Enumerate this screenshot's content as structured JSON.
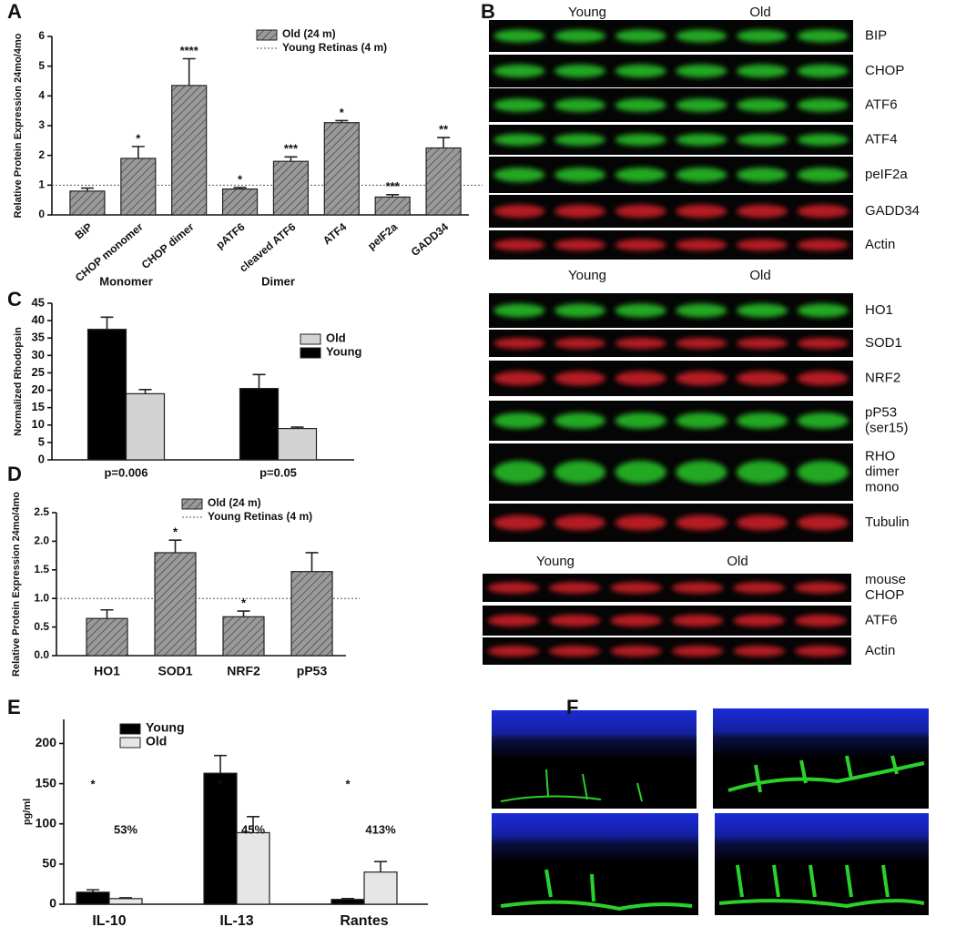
{
  "panel_labels": [
    "A",
    "B",
    "C",
    "D",
    "E",
    "F"
  ],
  "chart_data": [
    {
      "type": "bar",
      "ylabel": "Relative Protein Expression 24mo/4mo",
      "categories": [
        "BiP",
        "CHOP monomer",
        "CHOP dimer",
        "pATF6",
        "cleaved ATF6",
        "ATF4",
        "peIF2a",
        "GADD34"
      ],
      "series": [
        {
          "name": "Old (24 m)",
          "color": "#9a9a9a",
          "hatch": true,
          "values": [
            0.8,
            1.9,
            4.35,
            0.87,
            1.8,
            3.1,
            0.6,
            2.25
          ],
          "errors": [
            0.1,
            0.4,
            0.9,
            0.05,
            0.15,
            0.07,
            0.08,
            0.35
          ]
        }
      ],
      "stars": [
        null,
        "*",
        "****",
        "*",
        "***",
        "*",
        "***",
        "**"
      ],
      "reference_line": {
        "label": "Young Retinas (4 m)",
        "value": 1
      },
      "ylim": [
        0,
        6
      ],
      "yticks": [
        0,
        1,
        2,
        3,
        4,
        5,
        6
      ]
    },
    {
      "type": "bar",
      "ylabel": "Normalized Rhodopsin",
      "categories": [
        "Monomer",
        "Dimer"
      ],
      "p_values": [
        "p=0.006",
        "p=0.05"
      ],
      "series": [
        {
          "name": "Young",
          "color": "#000000",
          "values": [
            37.5,
            20.5
          ],
          "errors": [
            3.5,
            4
          ]
        },
        {
          "name": "Old",
          "color": "#d3d3d3",
          "values": [
            19,
            9
          ],
          "errors": [
            1.2,
            0.4
          ]
        }
      ],
      "ylim": [
        0,
        45
      ],
      "yticks": [
        0,
        5,
        10,
        15,
        20,
        25,
        30,
        35,
        40,
        45
      ]
    },
    {
      "type": "bar",
      "ylabel": "Relative Protein Expression 24mo/4mo",
      "categories": [
        "HO1",
        "SOD1",
        "NRF2",
        "pP53"
      ],
      "series": [
        {
          "name": "Old (24 m)",
          "color": "#9a9a9a",
          "hatch": true,
          "values": [
            0.65,
            1.8,
            0.68,
            1.47
          ],
          "errors": [
            0.15,
            0.22,
            0.1,
            0.33
          ]
        }
      ],
      "stars": [
        null,
        "*",
        "*",
        null
      ],
      "reference_line": {
        "label": "Young Retinas (4 m)",
        "value": 1
      },
      "ylim": [
        0,
        2.5
      ],
      "yticks": [
        {
          "value": 0,
          "label": "0.0"
        },
        {
          "value": 0.5,
          "label": "0.5"
        },
        {
          "value": 1,
          "label": "1.0"
        },
        {
          "value": 1.5,
          "label": "1.5"
        },
        {
          "value": 2,
          "label": "2.0"
        },
        {
          "value": 2.5,
          "label": "2.5"
        }
      ]
    },
    {
      "type": "bar",
      "ylabel": "pg/ml",
      "categories": [
        "IL-10",
        "IL-13",
        "Rantes"
      ],
      "series": [
        {
          "name": "Young",
          "color": "#000000",
          "values": [
            15,
            163,
            6
          ],
          "errors": [
            3,
            22,
            1
          ]
        },
        {
          "name": "Old",
          "color": "#e6e6e6",
          "values": [
            7,
            89,
            40
          ],
          "errors": [
            1,
            20,
            13
          ]
        }
      ],
      "stars": [
        "*",
        "*",
        "*"
      ],
      "percents": [
        "53%",
        "45%",
        "413%"
      ],
      "ylim": [
        0,
        230
      ],
      "yticks": [
        0,
        50,
        100,
        150,
        200
      ]
    }
  ],
  "blots": [
    {
      "groups": [
        "Young",
        "Old"
      ],
      "rows": [
        {
          "label": [
            "BIP"
          ],
          "color": "#2bd12b"
        },
        {
          "label": [
            "CHOP"
          ],
          "color": "#2bd12b"
        },
        {
          "label": [
            "ATF6"
          ],
          "color": "#2bd12b"
        },
        {
          "label": [
            "ATF4"
          ],
          "color": "#2bd12b"
        },
        {
          "label": [
            "peIF2a"
          ],
          "color": "#2bd12b"
        },
        {
          "label": [
            "GADD34"
          ],
          "color": "#e0202a"
        },
        {
          "label": [
            "Actin"
          ],
          "color": "#e0202a"
        }
      ]
    },
    {
      "groups": [
        "Young",
        "Old"
      ],
      "rows": [
        {
          "label": [
            "HO1"
          ],
          "color": "#2bd12b"
        },
        {
          "label": [
            "SOD1"
          ],
          "color": "#e0202a"
        },
        {
          "label": [
            "NRF2"
          ],
          "color": "#e0202a"
        },
        {
          "label": [
            "pP53",
            "(ser15)"
          ],
          "color": "#2bd12b"
        },
        {
          "label": [
            "RHO",
            "dimer",
            "mono"
          ],
          "color": "#2bd12b"
        },
        {
          "label": [
            "Tubulin"
          ],
          "color": "#e0202a"
        }
      ]
    },
    {
      "groups": [
        "Young",
        "Old"
      ],
      "rows": [
        {
          "label": [
            "mouse",
            "CHOP"
          ],
          "color": "#e0202a"
        },
        {
          "label": [
            "ATF6"
          ],
          "color": "#e0202a"
        },
        {
          "label": [
            "Actin"
          ],
          "color": "#e0202a"
        }
      ]
    }
  ]
}
